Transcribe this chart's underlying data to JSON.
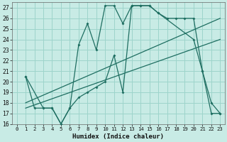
{
  "xlabel": "Humidex (Indice chaleur)",
  "bg_color": "#c8ebe5",
  "grid_color": "#9dd4cb",
  "line_color": "#1e6e61",
  "xlim": [
    -0.5,
    23.5
  ],
  "ylim": [
    16,
    27.5
  ],
  "xticks": [
    0,
    1,
    2,
    3,
    4,
    5,
    6,
    7,
    8,
    9,
    10,
    11,
    12,
    13,
    14,
    15,
    16,
    17,
    18,
    19,
    20,
    21,
    22,
    23
  ],
  "yticks": [
    16,
    17,
    18,
    19,
    20,
    21,
    22,
    23,
    24,
    25,
    26,
    27
  ],
  "line1_x": [
    1,
    2,
    3,
    4,
    5,
    6,
    7,
    8,
    9,
    10,
    11,
    12,
    13,
    14,
    15,
    16,
    17,
    18,
    19,
    20,
    21,
    22,
    23
  ],
  "line1_y": [
    20.5,
    17.5,
    17.5,
    17.5,
    16.0,
    17.5,
    23.5,
    25.5,
    23.0,
    27.2,
    27.2,
    25.5,
    27.2,
    27.2,
    27.2,
    26.5,
    26.0,
    26.0,
    26.0,
    26.0,
    21.0,
    17.0,
    17.0
  ],
  "line2_x": [
    1,
    3,
    4,
    5,
    6,
    7,
    8,
    9,
    10,
    11,
    12,
    13,
    14,
    15,
    16,
    20,
    21,
    22,
    23
  ],
  "line2_y": [
    20.5,
    17.5,
    17.5,
    16.0,
    17.5,
    18.5,
    19.0,
    19.5,
    20.0,
    22.5,
    19.0,
    27.2,
    27.2,
    27.2,
    26.5,
    24.0,
    21.0,
    18.0,
    17.0
  ],
  "line3_x": [
    1,
    23
  ],
  "line3_y": [
    18.0,
    26.0
  ],
  "line4_x": [
    1,
    23
  ],
  "line4_y": [
    17.5,
    24.0
  ]
}
